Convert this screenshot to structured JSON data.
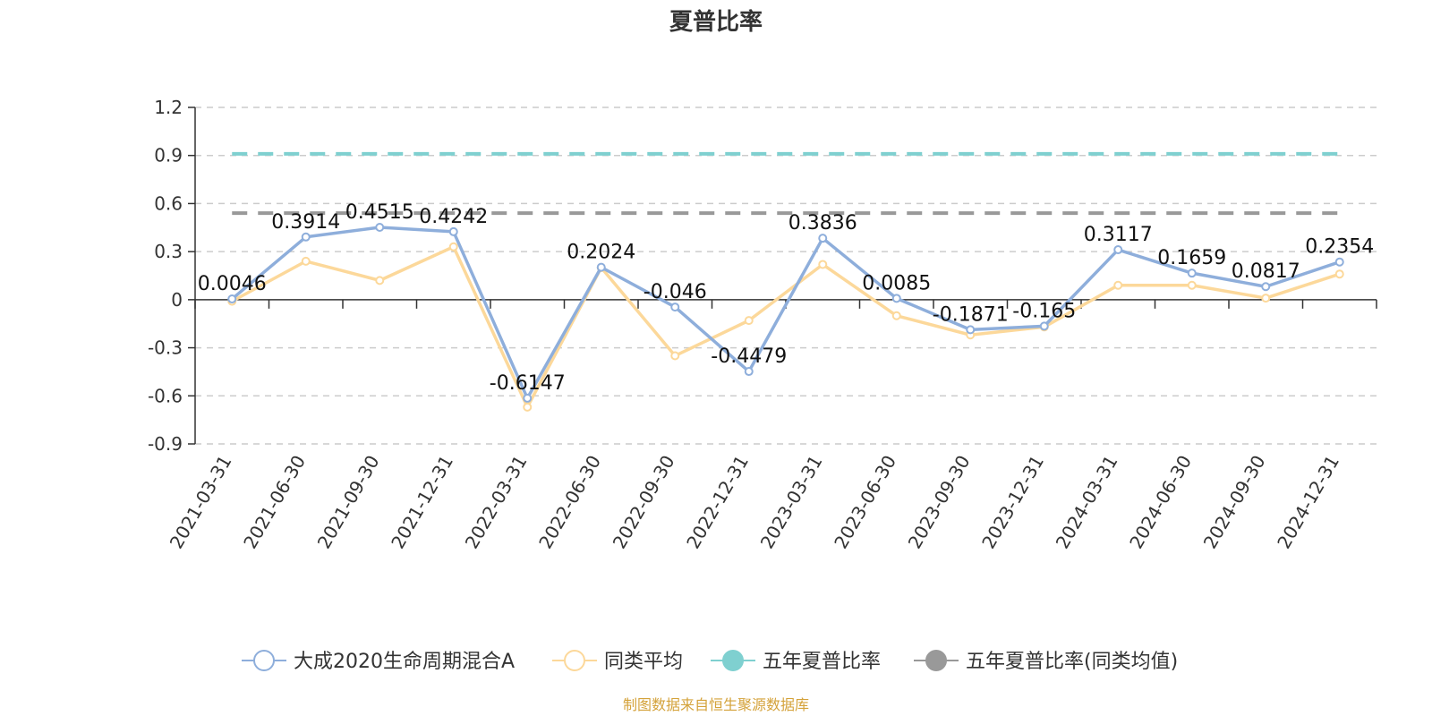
{
  "chart_data": {
    "type": "line",
    "title": "夏普比率",
    "categories": [
      "2021-03-31",
      "2021-06-30",
      "2021-09-30",
      "2021-12-31",
      "2022-03-31",
      "2022-06-30",
      "2022-09-30",
      "2022-12-31",
      "2023-03-31",
      "2023-06-30",
      "2023-09-30",
      "2023-12-31",
      "2024-03-31",
      "2024-06-30",
      "2024-09-30",
      "2024-12-31"
    ],
    "series": [
      {
        "name": "大成2020生命周期混合A",
        "color": "#8eaedb",
        "values": [
          0.0046,
          0.3914,
          0.4515,
          0.4242,
          -0.6147,
          0.2024,
          -0.046,
          -0.4479,
          0.3836,
          0.0085,
          -0.1871,
          -0.165,
          0.3117,
          0.1659,
          0.0817,
          0.2354
        ],
        "labels": [
          "0.0046",
          "0.3914",
          "0.4515",
          "0.4242",
          "-0.6147",
          "0.2024",
          "-0.046",
          "-0.4479",
          "0.3836",
          "0.0085",
          "-0.1871",
          "-0.165",
          "0.3117",
          "0.1659",
          "0.0817",
          "0.2354"
        ]
      },
      {
        "name": "同类平均",
        "color": "#fcd89a",
        "values": [
          -0.01,
          0.24,
          0.12,
          0.33,
          -0.67,
          0.2,
          -0.35,
          -0.13,
          0.22,
          -0.1,
          -0.22,
          -0.17,
          0.09,
          0.09,
          0.01,
          0.16
        ]
      }
    ],
    "reference_lines": [
      {
        "name": "五年夏普比率",
        "color": "#7fd0d0",
        "value": 0.91
      },
      {
        "name": "五年夏普比率(同类均值)",
        "color": "#999999",
        "value": 0.54
      }
    ],
    "y_ticks": [
      "1.2",
      "0.9",
      "0.6",
      "0.3",
      "0",
      "-0.3",
      "-0.6",
      "-0.9"
    ],
    "ylim": [
      -0.9,
      1.2
    ],
    "grid": true,
    "legend_position": "bottom",
    "source_note": "制图数据来自恒生聚源数据库"
  }
}
